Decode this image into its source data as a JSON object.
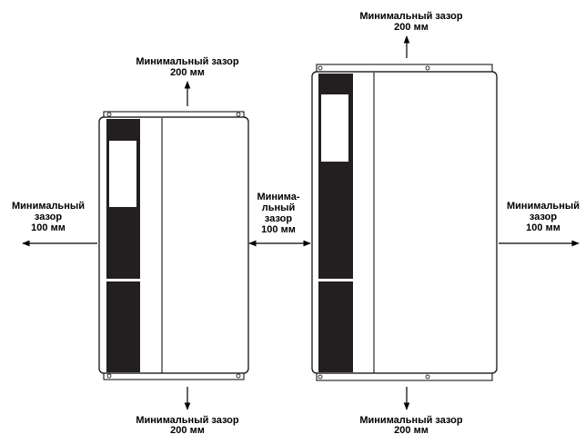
{
  "labels": {
    "left_top_1": "Минимальный зазор",
    "left_top_2": "200 мм",
    "left_side_1": "Минимальный",
    "left_side_2": "зазор",
    "left_side_3": "100 мм",
    "left_bottom_1": "Минимальный зазор",
    "left_bottom_2": "200 мм",
    "middle_1": "Минима-",
    "middle_2": "льный",
    "middle_3": "зазор",
    "middle_4": "100 мм",
    "right_top_1": "Минимальный зазор",
    "right_top_2": "200 мм",
    "right_side_1": "Минимальный",
    "right_side_2": "зазор",
    "right_side_3": "100 мм",
    "right_bottom_1": "Минимальный зазор",
    "right_bottom_2": "200 мм"
  }
}
